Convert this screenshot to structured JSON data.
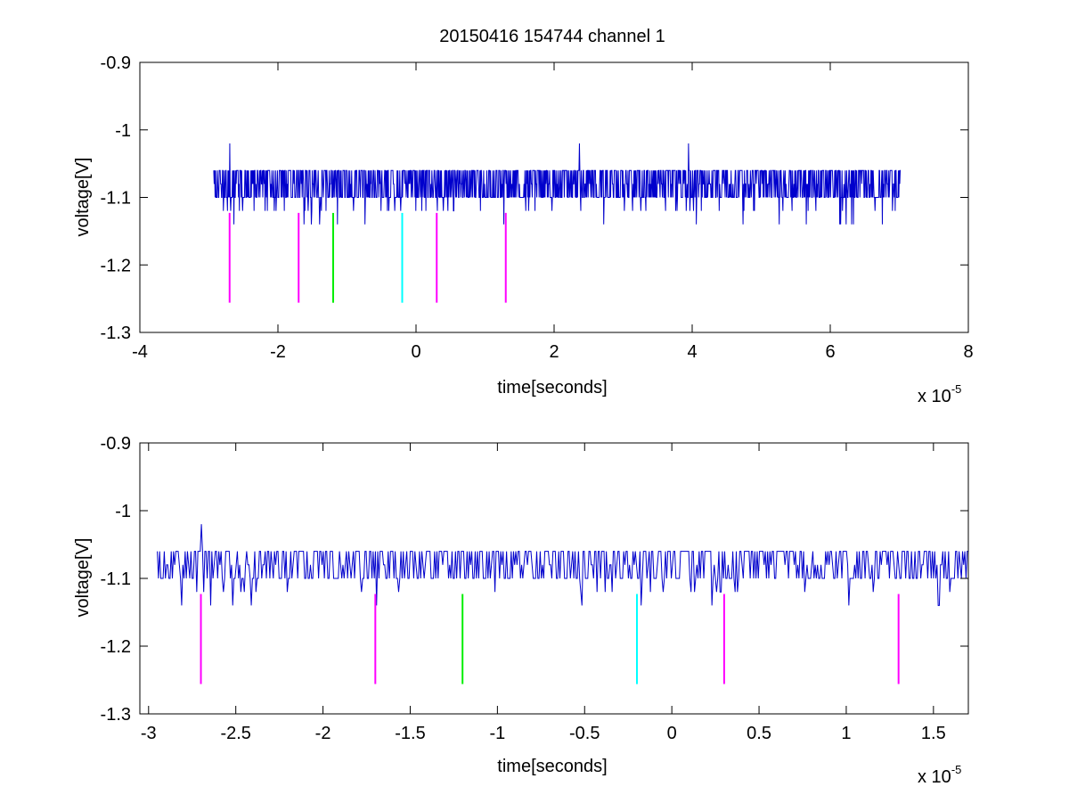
{
  "chart_data": [
    {
      "type": "line",
      "title": "20150416 154744 channel 1",
      "xlabel": "time[seconds]",
      "ylabel": "voltage[V]",
      "x_multiplier_label": "x 10",
      "x_multiplier_exponent": "-5",
      "xlim": [
        -4,
        8
      ],
      "ylim": [
        -1.3,
        -0.9
      ],
      "xticks": [
        "-4",
        "-2",
        "0",
        "2",
        "4",
        "6",
        "8"
      ],
      "yticks": [
        "-0.9",
        "-1",
        "-1.1",
        "-1.2",
        "-1.3"
      ],
      "series": [
        {
          "color": "#0000cc",
          "signal": {
            "x_start": -2.93,
            "x_end": 7.02,
            "samples": 1500,
            "levels": [
              -1.14,
              -1.12,
              -1.1,
              -1.08,
              -1.06
            ],
            "baseline": -1.1,
            "spikes": [
              {
                "x": -2.7,
                "y": -1.02
              },
              {
                "x": 2.37,
                "y": -1.02
              },
              {
                "x": 3.95,
                "y": -1.02
              }
            ]
          }
        }
      ],
      "markers": [
        {
          "x": -2.7,
          "color": "#ff00ff",
          "y_top": -1.123,
          "y_bottom": -1.256
        },
        {
          "x": -1.7,
          "color": "#ff00ff",
          "y_top": -1.123,
          "y_bottom": -1.256
        },
        {
          "x": -1.2,
          "color": "#00ee00",
          "y_top": -1.123,
          "y_bottom": -1.256
        },
        {
          "x": -0.2,
          "color": "#00ffff",
          "y_top": -1.123,
          "y_bottom": -1.256
        },
        {
          "x": 0.3,
          "color": "#ff00ff",
          "y_top": -1.123,
          "y_bottom": -1.256
        },
        {
          "x": 1.3,
          "color": "#ff00ff",
          "y_top": -1.123,
          "y_bottom": -1.256
        }
      ]
    },
    {
      "type": "line",
      "xlabel": "time[seconds]",
      "ylabel": "voltage[V]",
      "x_multiplier_label": "x 10",
      "x_multiplier_exponent": "-5",
      "xlim": [
        -3.05,
        1.7
      ],
      "ylim": [
        -1.3,
        -0.9
      ],
      "xticks": [
        "-3",
        "-2.5",
        "-2",
        "-1.5",
        "-1",
        "-0.5",
        "0",
        "0.5",
        "1",
        "1.5"
      ],
      "yticks": [
        "-0.9",
        "-1",
        "-1.1",
        "-1.2",
        "-1.3"
      ],
      "series": [
        {
          "color": "#0000cc",
          "signal": {
            "x_start": -2.95,
            "x_end": 1.7,
            "samples": 700,
            "levels": [
              -1.14,
              -1.12,
              -1.1,
              -1.08,
              -1.06
            ],
            "baseline": -1.1,
            "spikes": [
              {
                "x": -2.7,
                "y": -1.02
              }
            ]
          }
        }
      ],
      "markers": [
        {
          "x": -2.7,
          "color": "#ff00ff",
          "y_top": -1.123,
          "y_bottom": -1.256
        },
        {
          "x": -1.7,
          "color": "#ff00ff",
          "y_top": -1.123,
          "y_bottom": -1.256
        },
        {
          "x": -1.2,
          "color": "#00ee00",
          "y_top": -1.123,
          "y_bottom": -1.256
        },
        {
          "x": -0.2,
          "color": "#00ffff",
          "y_top": -1.123,
          "y_bottom": -1.256
        },
        {
          "x": 0.3,
          "color": "#ff00ff",
          "y_top": -1.123,
          "y_bottom": -1.256
        },
        {
          "x": 1.3,
          "color": "#ff00ff",
          "y_top": -1.123,
          "y_bottom": -1.256
        }
      ]
    }
  ]
}
